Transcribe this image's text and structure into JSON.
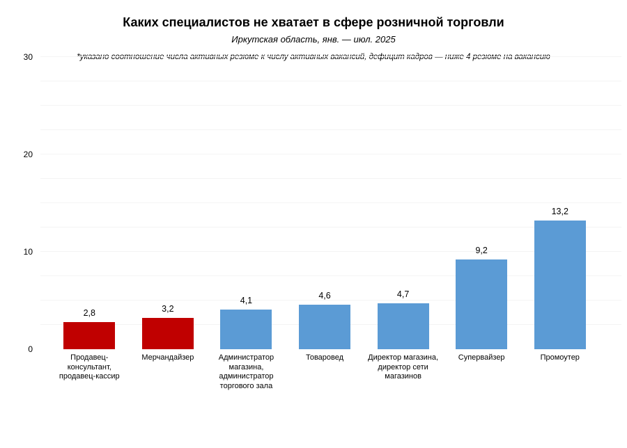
{
  "title": "Каких специалистов не хватает в сфере розничной торговли",
  "subtitle": "Иркутская область, янв. — июл. 2025",
  "footnote": "*указано соотношение числа активных резюме к числу активных вакансий, дефицит кадров — ниже 4 резюме на вакансию",
  "colors": {
    "deficit_red": "#c00000",
    "normal_blue": "#5b9bd5",
    "gridline": "#f4f4f4",
    "text": "#000000",
    "background": "#ffffff"
  },
  "y_axis": {
    "ticks": [
      {
        "label": "0",
        "value": 0
      },
      {
        "label": "10",
        "value": 10
      },
      {
        "label": "20",
        "value": 20
      },
      {
        "label": "30",
        "value": 30
      }
    ]
  },
  "chart_data": {
    "type": "bar",
    "title": "Каких специалистов не хватает в сфере розничной торговли",
    "subtitle": "Иркутская область, янв. — июл. 2025",
    "footnote": "*указано соотношение числа активных резюме к числу активных вакансий, дефицит кадров — ниже 4 резюме на вакансию",
    "categories": [
      "Продавец-консультант, продавец-кассир",
      "Мерчандайзер",
      "Администратор магазина, администратор торгового зала",
      "Товаровед",
      "Директор магазина, директор сети магазинов",
      "Супервайзер",
      "Промоутер"
    ],
    "values": [
      2.8,
      3.2,
      4.1,
      4.6,
      4.7,
      9.2,
      13.2
    ],
    "xlabel": "",
    "ylabel": "",
    "ylim": [
      0,
      30
    ],
    "yticks": [
      0,
      10,
      20,
      30
    ],
    "grid": "faint horizontal minor gridlines every 2.5 units",
    "legend": "none",
    "bars": [
      {
        "label": "Продавец-консультант,\nпродавец-кассир",
        "value": 2.8,
        "value_label": "2,8",
        "color": "#c00000"
      },
      {
        "label": "Мерчандайзер",
        "value": 3.2,
        "value_label": "3,2",
        "color": "#c00000"
      },
      {
        "label": "Администратор\nмагазина,\nадминистратор\nторгового зала",
        "value": 4.1,
        "value_label": "4,1",
        "color": "#5b9bd5"
      },
      {
        "label": "Товаровед",
        "value": 4.6,
        "value_label": "4,6",
        "color": "#5b9bd5"
      },
      {
        "label": "Директор магазина,\nдиректор сети\nмагазинов",
        "value": 4.7,
        "value_label": "4,7",
        "color": "#5b9bd5"
      },
      {
        "label": "Супервайзер",
        "value": 9.2,
        "value_label": "9,2",
        "color": "#5b9bd5"
      },
      {
        "label": "Промоутер",
        "value": 13.2,
        "value_label": "13,2",
        "color": "#5b9bd5"
      }
    ]
  }
}
